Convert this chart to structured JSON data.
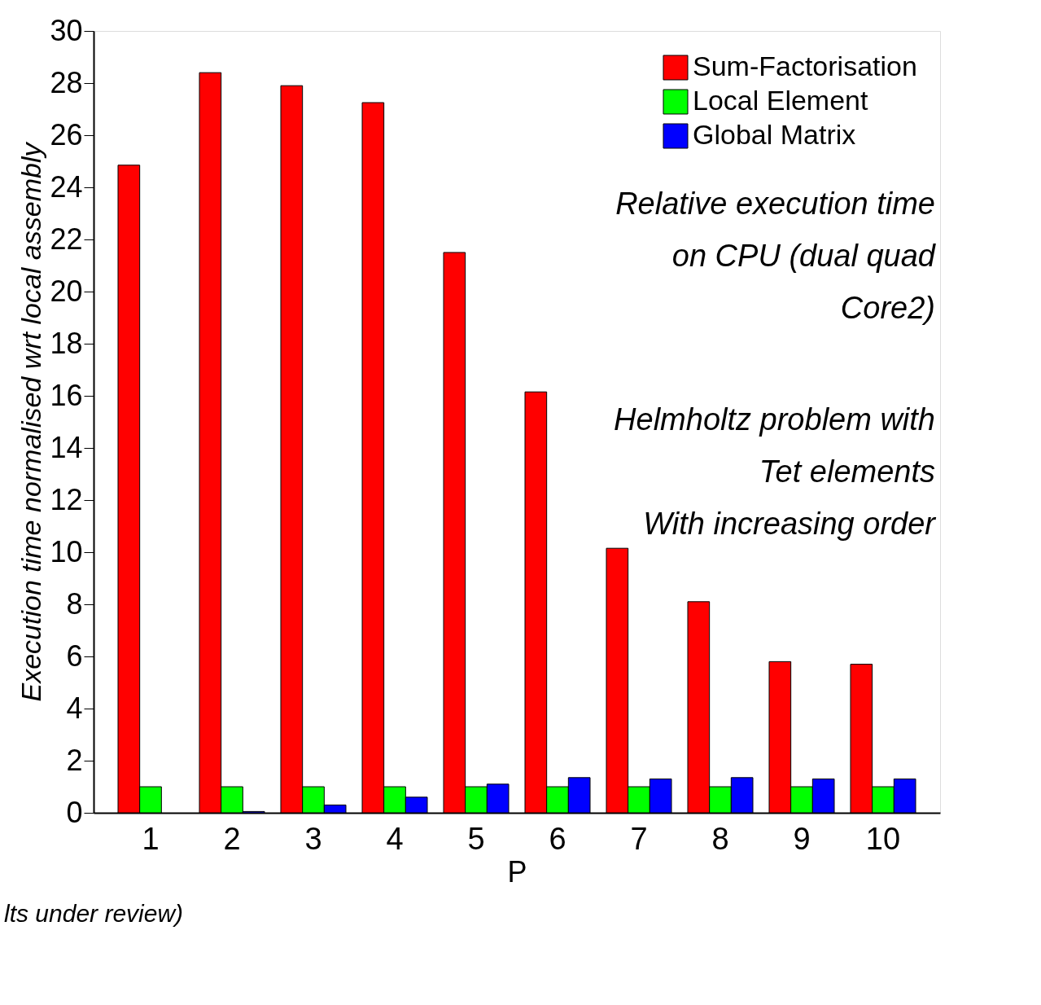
{
  "chart_data": {
    "type": "bar",
    "categories": [
      "1",
      "2",
      "3",
      "4",
      "5",
      "6",
      "7",
      "8",
      "9",
      "10"
    ],
    "series": [
      {
        "name": "Sum-Factorisation",
        "color": "#ff0000",
        "values": [
          24.85,
          28.4,
          27.9,
          27.25,
          21.5,
          16.15,
          10.15,
          8.1,
          5.8,
          5.7
        ]
      },
      {
        "name": "Local Element",
        "color": "#00ff00",
        "values": [
          1,
          1,
          1,
          1,
          1,
          1,
          1,
          1,
          1,
          1
        ]
      },
      {
        "name": "Global Matrix",
        "color": "#0000ff",
        "values": [
          null,
          0.05,
          0.3,
          0.6,
          1.1,
          1.35,
          1.3,
          1.35,
          1.3,
          1.3
        ]
      }
    ],
    "xlabel": "P",
    "ylabel": "Execution time normalised wrt local assembly",
    "ylim": [
      0,
      30
    ],
    "yticks": [
      0,
      2,
      4,
      6,
      8,
      10,
      12,
      14,
      16,
      18,
      20,
      22,
      24,
      26,
      28,
      30
    ],
    "annotations": [
      "Relative execution time\non CPU (dual quad\nCore2)",
      "Helmholtz problem with\nTet elements\nWith increasing order",
      "lts under review)"
    ],
    "legend": "top right",
    "grid": false
  }
}
